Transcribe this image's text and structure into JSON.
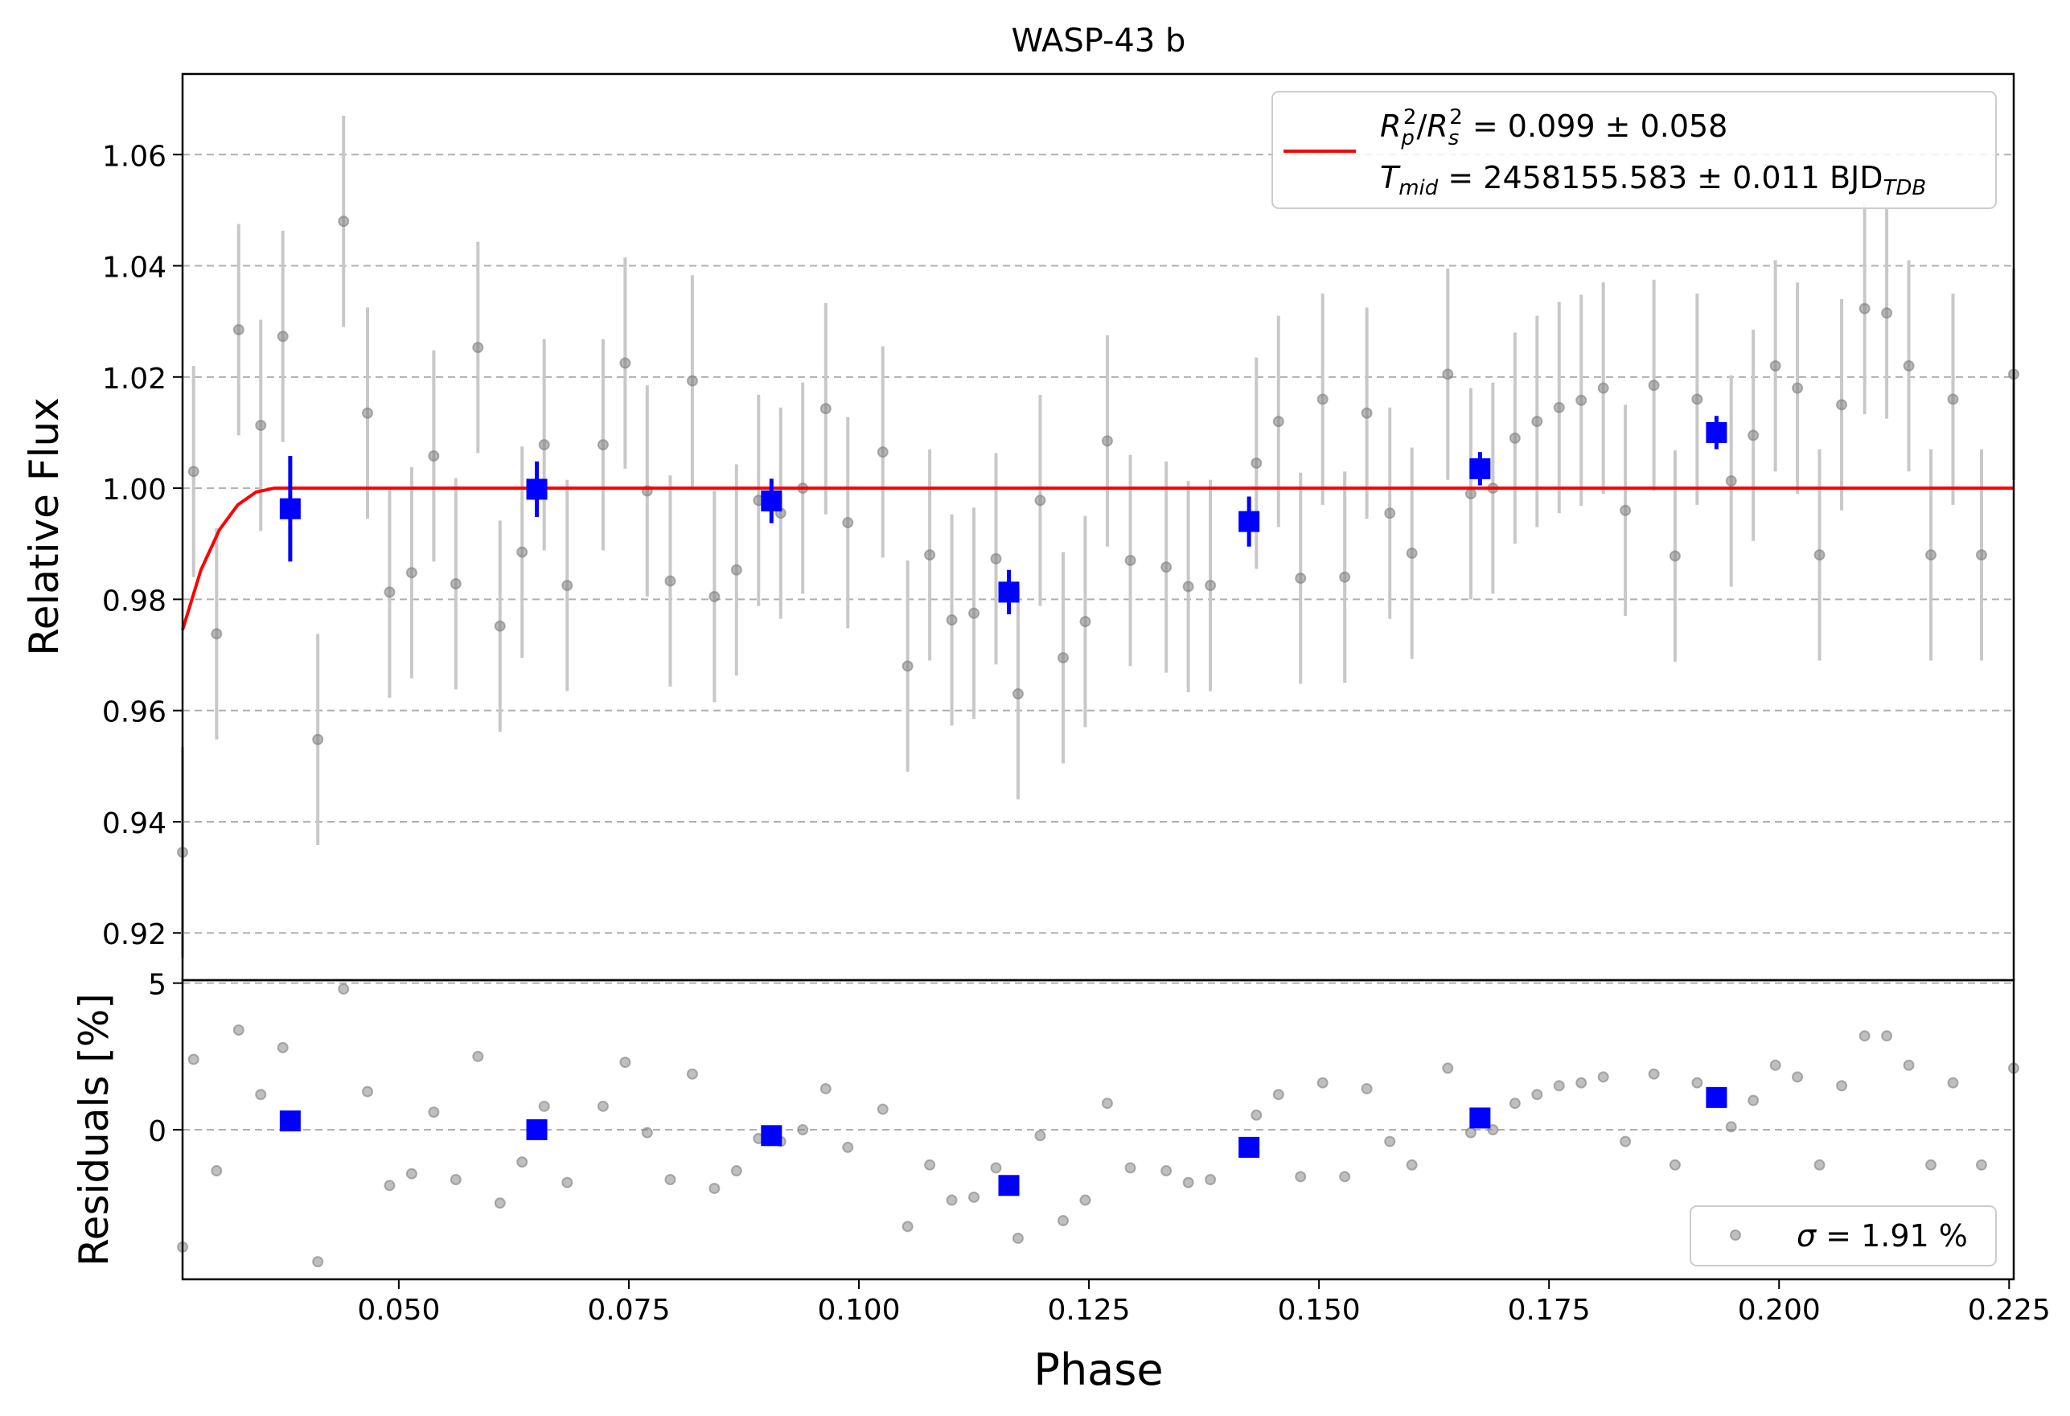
{
  "chart_data": [
    {
      "type": "scatter",
      "title": "WASP-43 b",
      "xlabel": "Phase",
      "ylabel": "Relative Flux",
      "xlim": [
        0.0265,
        0.2255
      ],
      "ylim": [
        0.9115,
        1.0745
      ],
      "xticks": [
        "0.050",
        "0.075",
        "0.100",
        "0.125",
        "0.150",
        "0.175",
        "0.200",
        "0.225"
      ],
      "yticks": [
        "0.92",
        "0.94",
        "0.96",
        "0.98",
        "1.00",
        "1.02",
        "1.04",
        "1.06"
      ],
      "grid": "horizontal dashed",
      "legend_position": "top-right",
      "legend": {
        "rp_line": "R_p^2/R_s^2 = 0.099 ± 0.058",
        "tmid_line": "T_mid = 2458155.583 ± 0.011 BJD_TDB",
        "rp_text": " = 0.099 ± 0.058",
        "tmid_text": " = 2458155.583 ± 0.011 BJD"
      },
      "raw_points": {
        "x": [
          0.0265,
          0.0277,
          0.0302,
          0.0326,
          0.035,
          0.0374,
          0.0412,
          0.044,
          0.0466,
          0.049,
          0.0514,
          0.0538,
          0.0562,
          0.0586,
          0.061,
          0.0634,
          0.0658,
          0.0683,
          0.0722,
          0.0746,
          0.077,
          0.0795,
          0.0819,
          0.0843,
          0.0867,
          0.0891,
          0.0915,
          0.0939,
          0.0964,
          0.0988,
          0.1026,
          0.1053,
          0.1077,
          0.1101,
          0.1125,
          0.1149,
          0.1173,
          0.1197,
          0.1222,
          0.1246,
          0.127,
          0.1295,
          0.1334,
          0.1358,
          0.1382,
          0.1432,
          0.1456,
          0.148,
          0.1504,
          0.1528,
          0.1552,
          0.1577,
          0.1601,
          0.164,
          0.1665,
          0.1689,
          0.1713,
          0.1737,
          0.1761,
          0.1785,
          0.1809,
          0.1833,
          0.1864,
          0.1887,
          0.1911,
          0.1948,
          0.1972,
          0.1996,
          0.202,
          0.2044,
          0.2068,
          0.2093,
          0.2117,
          0.2141,
          0.2165,
          0.2189,
          0.222,
          0.2255
        ],
        "y": [
          0.9345,
          1.003,
          0.9738,
          1.0285,
          1.0113,
          1.0273,
          0.9548,
          1.048,
          1.0135,
          0.9813,
          0.9848,
          1.0058,
          0.9828,
          1.0253,
          0.9752,
          0.9885,
          1.0078,
          0.9825,
          1.0078,
          1.0225,
          0.9995,
          0.9833,
          1.0193,
          0.9805,
          0.9853,
          0.9978,
          0.9955,
          1.0,
          1.0143,
          0.9938,
          1.0065,
          0.968,
          0.988,
          0.9763,
          0.9775,
          0.9873,
          0.963,
          0.9978,
          0.9695,
          0.976,
          1.0085,
          0.987,
          0.9858,
          0.9823,
          0.9825,
          1.0045,
          1.012,
          0.9838,
          1.016,
          0.984,
          1.0135,
          0.9955,
          0.9883,
          1.0205,
          0.999,
          1.0,
          1.009,
          1.012,
          1.0145,
          1.0158,
          1.018,
          0.996,
          1.0185,
          0.9878,
          1.016,
          1.0013,
          1.0095,
          1.022,
          1.018,
          0.988,
          1.015,
          1.0323,
          1.0315,
          1.022,
          0.988,
          1.016,
          0.988,
          1.0205
        ],
        "yerr": 0.019
      },
      "binned_points": {
        "x": [
          0.0382,
          0.065,
          0.0905,
          0.1163,
          0.1424,
          0.1675,
          0.1932
        ],
        "y": [
          0.9963,
          0.9998,
          0.9977,
          0.9813,
          0.994,
          1.0035,
          1.01
        ],
        "yerr": [
          0.0095,
          0.005,
          0.004,
          0.004,
          0.0045,
          0.003,
          0.003
        ]
      },
      "model": {
        "name": "transit model",
        "x": [
          0.0265,
          0.0285,
          0.0305,
          0.0325,
          0.0345,
          0.0365,
          0.0375,
          0.2255
        ],
        "y": [
          0.9745,
          0.9853,
          0.9925,
          0.997,
          0.9993,
          1.0,
          1.0,
          1.0
        ]
      },
      "colors": {
        "raw": "#808080",
        "raw_err": "#c8c8c8",
        "binned": "#0000ff",
        "model": "#ff0000",
        "grid": "#b0b0b0"
      }
    },
    {
      "type": "scatter",
      "title": "",
      "xlabel": "Phase",
      "ylabel": "Residuals [%]",
      "xlim": [
        0.0265,
        0.2255
      ],
      "ylim": [
        -5.1,
        5.1
      ],
      "yticks": [
        "5",
        "0"
      ],
      "grid": "horizontal dashed",
      "legend_position": "bottom-right",
      "legend": {
        "sigma_text": " = 1.91 %",
        "sigma_line": "σ = 1.91 %"
      },
      "raw_points": {
        "x": [
          0.0265,
          0.0277,
          0.0302,
          0.0326,
          0.035,
          0.0374,
          0.0412,
          0.044,
          0.0466,
          0.049,
          0.0514,
          0.0538,
          0.0562,
          0.0586,
          0.061,
          0.0634,
          0.0658,
          0.0683,
          0.0722,
          0.0746,
          0.077,
          0.0795,
          0.0819,
          0.0843,
          0.0867,
          0.0891,
          0.0915,
          0.0939,
          0.0964,
          0.0988,
          0.1026,
          0.1053,
          0.1077,
          0.1101,
          0.1125,
          0.1149,
          0.1173,
          0.1197,
          0.1222,
          0.1246,
          0.127,
          0.1295,
          0.1334,
          0.1358,
          0.1382,
          0.1432,
          0.1456,
          0.148,
          0.1504,
          0.1528,
          0.1552,
          0.1577,
          0.1601,
          0.164,
          0.1665,
          0.1689,
          0.1713,
          0.1737,
          0.1761,
          0.1785,
          0.1809,
          0.1833,
          0.1864,
          0.1887,
          0.1911,
          0.1948,
          0.1972,
          0.1996,
          0.202,
          0.2044,
          0.2068,
          0.2093,
          0.2117,
          0.2141,
          0.2165,
          0.2189,
          0.222,
          0.2255
        ],
        "y": [
          -4.0,
          2.4,
          -1.4,
          3.4,
          1.2,
          2.8,
          -4.5,
          4.8,
          1.3,
          -1.9,
          -1.5,
          0.6,
          -1.7,
          2.5,
          -2.5,
          -1.1,
          0.8,
          -1.8,
          0.8,
          2.3,
          -0.1,
          -1.7,
          1.9,
          -2.0,
          -1.4,
          -0.3,
          -0.4,
          0.0,
          1.4,
          -0.6,
          0.7,
          -3.3,
          -1.2,
          -2.4,
          -2.3,
          -1.3,
          -3.7,
          -0.2,
          -3.1,
          -2.4,
          0.9,
          -1.3,
          -1.4,
          -1.8,
          -1.7,
          0.5,
          1.2,
          -1.6,
          1.6,
          -1.6,
          1.4,
          -0.4,
          -1.2,
          2.1,
          -0.1,
          0.0,
          0.9,
          1.2,
          1.5,
          1.6,
          1.8,
          -0.4,
          1.9,
          -1.2,
          1.6,
          0.1,
          1.0,
          2.2,
          1.8,
          -1.2,
          1.5,
          3.2,
          3.2,
          2.2,
          -1.2,
          1.6,
          -1.2,
          2.1
        ]
      },
      "binned_points": {
        "x": [
          0.0382,
          0.065,
          0.0905,
          0.1163,
          0.1424,
          0.1675,
          0.1932
        ],
        "y": [
          0.3,
          0.0,
          -0.2,
          -1.9,
          -0.6,
          0.4,
          1.1
        ]
      }
    }
  ]
}
